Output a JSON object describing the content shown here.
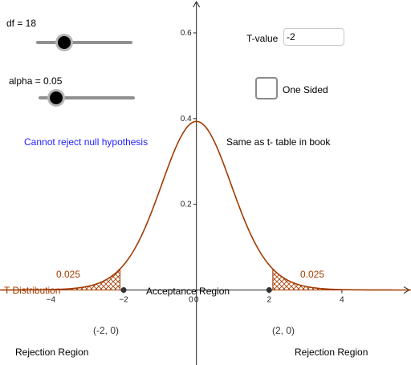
{
  "sliders": {
    "df": {
      "label": "df = 18",
      "min": 1,
      "max": 100,
      "value": 18
    },
    "alpha": {
      "label": "alpha = 0.05",
      "min": 0.01,
      "max": 1,
      "value": 0.05
    }
  },
  "tvalue": {
    "label": "T-value",
    "value": "-2"
  },
  "one_sided": {
    "label": "One Sided",
    "checked": false
  },
  "texts": {
    "status": "Cannot reject null hypothesis",
    "note": "Same as t- table in book",
    "series_label": "T Distribution",
    "acceptance": "Acceptance Region",
    "rejection_left": "Rejection Region",
    "rejection_right": "Rejection Region",
    "left_tail_area": "0.025",
    "right_tail_area": "0.025"
  },
  "points": [
    {
      "label": "(-2, 0)",
      "x": -2,
      "y": 0
    },
    {
      "label": "(2, 0)",
      "x": 2,
      "y": 0
    }
  ],
  "colors": {
    "curve": "#a33b00",
    "status": "#1f1fff",
    "hatch": "#a33b00"
  },
  "chart_data": {
    "type": "line",
    "df": 18,
    "xlim": [
      -5.4,
      5.9
    ],
    "ylim": [
      -0.175,
      0.6767
    ],
    "x_ticks": [
      -4,
      -2,
      0,
      2,
      4
    ],
    "y_ticks": [
      0.2,
      0.4,
      0.6
    ],
    "critical_values": [
      -2.1,
      2.1
    ],
    "shaded_regions": [
      [
        -5.4,
        -2.1
      ],
      [
        2.1,
        5.9
      ]
    ]
  }
}
